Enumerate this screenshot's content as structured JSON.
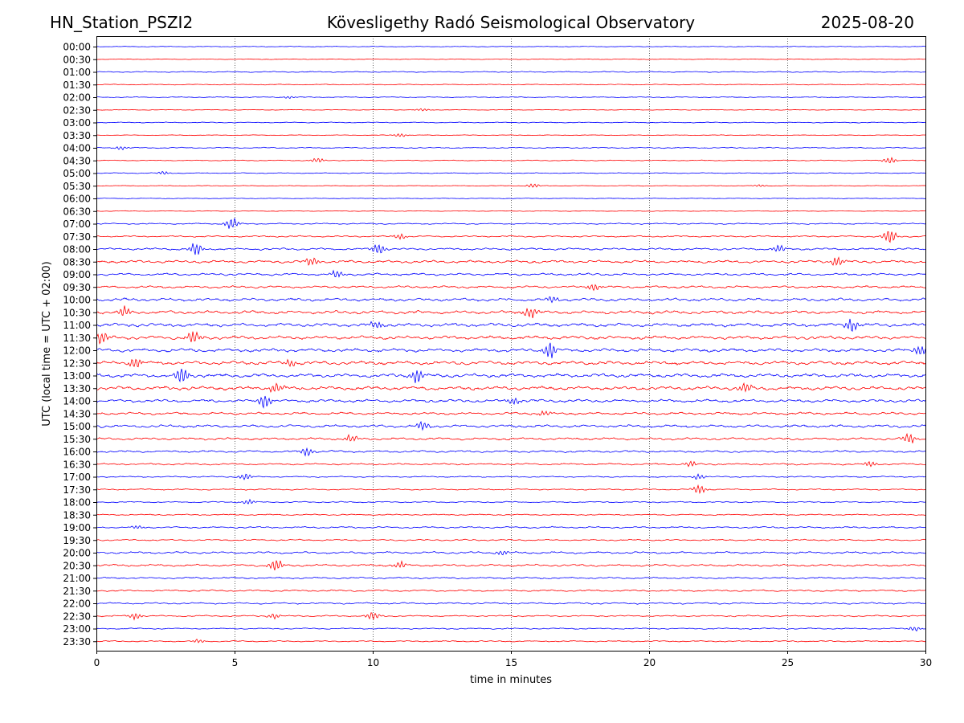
{
  "header": {
    "station": "HN_Station_PSZI2",
    "observatory": "Kövesligethy Radó Seismological Observatory",
    "date": "2025-08-20"
  },
  "chart_data": {
    "type": "line",
    "title": "Kövesligethy Radó Seismological Observatory",
    "xlabel": "time in minutes",
    "ylabel": "UTC (local time = UTC + 02:00)",
    "xlim": [
      0,
      30
    ],
    "xticks": [
      "0",
      "5",
      "10",
      "15",
      "20",
      "25",
      "30"
    ],
    "xtick_values": [
      0,
      5,
      10,
      15,
      20,
      25,
      30
    ],
    "vertical_grid": "dotted at each x tick",
    "trace_colors": [
      "#0000ff",
      "#ff0000"
    ],
    "rows": [
      "00:00",
      "00:30",
      "01:00",
      "01:30",
      "02:00",
      "02:30",
      "03:00",
      "03:30",
      "04:00",
      "04:30",
      "05:00",
      "05:30",
      "06:00",
      "06:30",
      "07:00",
      "07:30",
      "08:00",
      "08:30",
      "09:00",
      "09:30",
      "10:00",
      "10:30",
      "11:00",
      "11:30",
      "12:00",
      "12:30",
      "13:00",
      "13:30",
      "14:00",
      "14:30",
      "15:00",
      "15:30",
      "16:00",
      "16:30",
      "17:00",
      "17:30",
      "18:00",
      "18:30",
      "19:00",
      "19:30",
      "20:00",
      "20:30",
      "21:00",
      "21:30",
      "22:00",
      "22:30",
      "23:00",
      "23:30"
    ],
    "noise_level": [
      0.3,
      0.3,
      0.5,
      0.4,
      0.4,
      0.3,
      0.4,
      0.3,
      0.5,
      0.4,
      0.4,
      0.3,
      0.3,
      0.3,
      0.6,
      0.7,
      1.0,
      1.3,
      1.1,
      1.1,
      1.4,
      1.5,
      1.6,
      1.6,
      1.6,
      1.7,
      1.7,
      1.7,
      1.4,
      1.2,
      1.3,
      1.1,
      1.0,
      0.8,
      0.6,
      0.6,
      0.6,
      0.6,
      0.8,
      0.7,
      1.0,
      1.0,
      0.8,
      0.8,
      0.8,
      0.7,
      0.6,
      0.6
    ],
    "events": [
      {
        "row": 4,
        "t": 7.0,
        "amp": 1.5
      },
      {
        "row": 5,
        "t": 11.8,
        "amp": 1.5
      },
      {
        "row": 7,
        "t": 11.0,
        "amp": 2
      },
      {
        "row": 8,
        "t": 0.9,
        "amp": 2
      },
      {
        "row": 9,
        "t": 8.0,
        "amp": 3
      },
      {
        "row": 9,
        "t": 28.7,
        "amp": 4
      },
      {
        "row": 10,
        "t": 2.4,
        "amp": 2
      },
      {
        "row": 11,
        "t": 15.8,
        "amp": 2.5
      },
      {
        "row": 11,
        "t": 24.0,
        "amp": 1.5
      },
      {
        "row": 14,
        "t": 4.9,
        "amp": 7
      },
      {
        "row": 15,
        "t": 11.0,
        "amp": 3
      },
      {
        "row": 15,
        "t": 28.7,
        "amp": 9
      },
      {
        "row": 16,
        "t": 3.6,
        "amp": 8
      },
      {
        "row": 16,
        "t": 10.2,
        "amp": 7
      },
      {
        "row": 16,
        "t": 24.7,
        "amp": 4
      },
      {
        "row": 17,
        "t": 7.8,
        "amp": 5
      },
      {
        "row": 17,
        "t": 26.8,
        "amp": 5
      },
      {
        "row": 18,
        "t": 8.7,
        "amp": 4
      },
      {
        "row": 19,
        "t": 18.0,
        "amp": 4
      },
      {
        "row": 20,
        "t": 16.5,
        "amp": 4
      },
      {
        "row": 21,
        "t": 1.0,
        "amp": 6
      },
      {
        "row": 21,
        "t": 15.7,
        "amp": 7
      },
      {
        "row": 22,
        "t": 10.1,
        "amp": 5
      },
      {
        "row": 22,
        "t": 27.3,
        "amp": 7
      },
      {
        "row": 23,
        "t": 3.5,
        "amp": 7
      },
      {
        "row": 23,
        "t": 0.2,
        "amp": 7
      },
      {
        "row": 24,
        "t": 16.4,
        "amp": 10
      },
      {
        "row": 24,
        "t": 29.8,
        "amp": 6
      },
      {
        "row": 25,
        "t": 1.4,
        "amp": 7
      },
      {
        "row": 25,
        "t": 7.0,
        "amp": 4
      },
      {
        "row": 26,
        "t": 3.1,
        "amp": 10
      },
      {
        "row": 26,
        "t": 11.6,
        "amp": 9
      },
      {
        "row": 27,
        "t": 6.5,
        "amp": 6
      },
      {
        "row": 27,
        "t": 23.5,
        "amp": 6
      },
      {
        "row": 28,
        "t": 6.1,
        "amp": 8
      },
      {
        "row": 28,
        "t": 15.1,
        "amp": 4
      },
      {
        "row": 29,
        "t": 16.2,
        "amp": 3
      },
      {
        "row": 30,
        "t": 11.8,
        "amp": 5
      },
      {
        "row": 31,
        "t": 9.2,
        "amp": 4
      },
      {
        "row": 31,
        "t": 29.4,
        "amp": 6
      },
      {
        "row": 32,
        "t": 7.6,
        "amp": 5
      },
      {
        "row": 33,
        "t": 21.5,
        "amp": 3
      },
      {
        "row": 33,
        "t": 28.0,
        "amp": 3
      },
      {
        "row": 34,
        "t": 5.4,
        "amp": 4
      },
      {
        "row": 34,
        "t": 21.8,
        "amp": 3
      },
      {
        "row": 35,
        "t": 21.8,
        "amp": 5
      },
      {
        "row": 36,
        "t": 5.5,
        "amp": 3
      },
      {
        "row": 38,
        "t": 1.5,
        "amp": 2
      },
      {
        "row": 40,
        "t": 14.7,
        "amp": 3
      },
      {
        "row": 41,
        "t": 6.5,
        "amp": 7
      },
      {
        "row": 41,
        "t": 11.0,
        "amp": 4
      },
      {
        "row": 45,
        "t": 1.4,
        "amp": 4
      },
      {
        "row": 45,
        "t": 6.4,
        "amp": 3
      },
      {
        "row": 45,
        "t": 10.0,
        "amp": 5
      },
      {
        "row": 46,
        "t": 29.6,
        "amp": 3
      },
      {
        "row": 47,
        "t": 3.7,
        "amp": 2
      }
    ]
  }
}
